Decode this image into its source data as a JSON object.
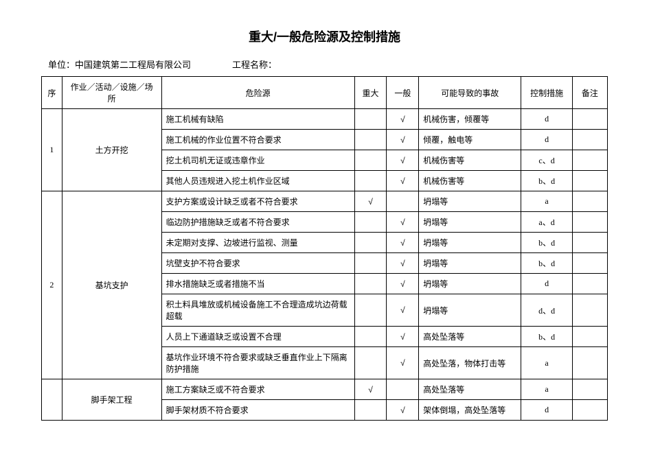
{
  "doc": {
    "title": "重大/一般危险源及控制措施",
    "unit_label": "单位：",
    "unit_value": "中国建筑第二工程局有限公司",
    "project_label": "工程名称：",
    "project_value": ""
  },
  "columns": {
    "seq": "序",
    "activity": "作业／活动／设施／场所",
    "hazard": "危险源",
    "major": "重大",
    "general": "一般",
    "accident": "可能导致的事故",
    "measure": "控制措施",
    "remark": "备注"
  },
  "col_widths": {
    "seq": "28px",
    "activity": "136px",
    "hazard": "264px",
    "major": "44px",
    "general": "44px",
    "accident": "140px",
    "measure": "70px",
    "remark": "48px"
  },
  "mark": "√",
  "groups": [
    {
      "seq": "1",
      "activity": "土方开挖",
      "rows": [
        {
          "hazard": "施工机械有缺陷",
          "major": "",
          "general": "√",
          "accident": "机械伤害，倾覆等",
          "measure": "d",
          "remark": ""
        },
        {
          "hazard": "施工机械的作业位置不符合要求",
          "major": "",
          "general": "√",
          "accident": "倾覆，触电等",
          "measure": "d",
          "remark": ""
        },
        {
          "hazard": "挖土机司机无证或违章作业",
          "major": "",
          "general": "√",
          "accident": "机械伤害等",
          "measure": "c、d",
          "remark": ""
        },
        {
          "hazard": "其他人员违规进入挖土机作业区域",
          "major": "",
          "general": "√",
          "accident": "机械伤害等",
          "measure": "b、d",
          "remark": ""
        }
      ]
    },
    {
      "seq": "2",
      "activity": "基坑支护",
      "rows": [
        {
          "hazard": "支护方案或设计缺乏或者不符合要求",
          "major": "√",
          "general": "",
          "accident": "坍塌等",
          "measure": "a",
          "remark": ""
        },
        {
          "hazard": "临边防护措施缺乏或者不符合要求",
          "major": "",
          "general": "√",
          "accident": "坍塌等",
          "measure": "a、d",
          "remark": ""
        },
        {
          "hazard": "未定期对支撑、边坡进行监视、测量",
          "major": "",
          "general": "√",
          "accident": "坍塌等",
          "measure": "b、d",
          "remark": ""
        },
        {
          "hazard": "坑壁支护不符合要求",
          "major": "",
          "general": "√",
          "accident": "坍塌等",
          "measure": "b、d",
          "remark": ""
        },
        {
          "hazard": "排水措施缺乏或者措施不当",
          "major": "",
          "general": "√",
          "accident": "坍塌等",
          "measure": "d",
          "remark": ""
        },
        {
          "hazard": "积土料具堆放或机械设备施工不合理造成坑边荷载超载",
          "major": "",
          "general": "√",
          "accident": "坍塌等",
          "measure": "d、d",
          "remark": ""
        },
        {
          "hazard": "人员上下通道缺乏或设置不合理",
          "major": "",
          "general": "√",
          "accident": "高处坠落等",
          "measure": "b、d",
          "remark": ""
        },
        {
          "hazard": "基坑作业环境不符合要求或缺乏垂直作业上下隔离防护措施",
          "major": "",
          "general": "√",
          "accident": "高处坠落，物体打击等",
          "measure": "a",
          "remark": ""
        }
      ]
    },
    {
      "seq": "",
      "activity": "脚手架工程",
      "rows": [
        {
          "hazard": "施工方案缺乏或不符合要求",
          "major": "√",
          "general": "",
          "accident": "高处坠落等",
          "measure": "a",
          "remark": ""
        },
        {
          "hazard": "脚手架材质不符合要求",
          "major": "",
          "general": "√",
          "accident": "架体倒塌，高处坠落等",
          "measure": "d",
          "remark": ""
        }
      ]
    }
  ],
  "colors": {
    "border": "#000000",
    "bg": "#ffffff",
    "text": "#000000"
  }
}
